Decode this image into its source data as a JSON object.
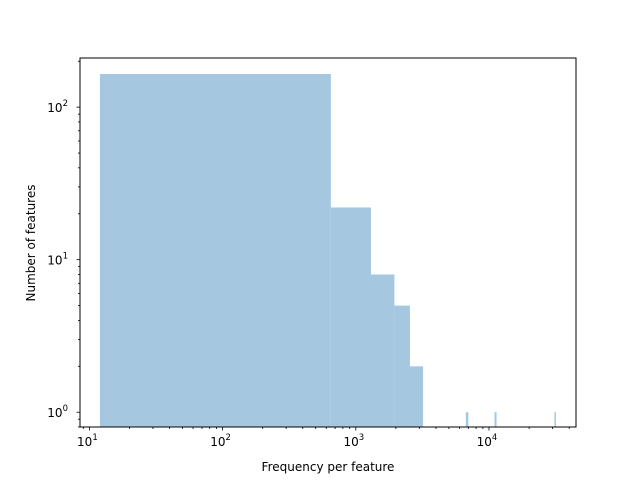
{
  "chart_data": {
    "type": "bar",
    "chart_kind": "histogram",
    "xlabel": "Frequency per feature",
    "ylabel": "Number of features",
    "xscale": "log",
    "yscale": "log",
    "xlim": [
      8.5,
      45000
    ],
    "ylim": [
      0.8,
      210
    ],
    "grid": false,
    "bar_color": "#a5c8e0",
    "bins": [
      {
        "x0": 12,
        "x1": 650,
        "count": 165
      },
      {
        "x0": 650,
        "x1": 1300,
        "count": 22
      },
      {
        "x0": 1300,
        "x1": 1950,
        "count": 8
      },
      {
        "x0": 1950,
        "x1": 2550,
        "count": 5
      },
      {
        "x0": 2550,
        "x1": 3200,
        "count": 2
      },
      {
        "x0": 6700,
        "x1": 7000,
        "count": 1
      },
      {
        "x0": 11000,
        "x1": 11400,
        "count": 1
      },
      {
        "x0": 31000,
        "x1": 31300,
        "count": 1
      }
    ],
    "x_ticks": [
      {
        "value": 10,
        "base": "10",
        "exp": "1"
      },
      {
        "value": 100,
        "base": "10",
        "exp": "2"
      },
      {
        "value": 1000,
        "base": "10",
        "exp": "3"
      },
      {
        "value": 10000,
        "base": "10",
        "exp": "4"
      }
    ],
    "y_ticks": [
      {
        "value": 1,
        "base": "10",
        "exp": "0"
      },
      {
        "value": 10,
        "base": "10",
        "exp": "1"
      },
      {
        "value": 100,
        "base": "10",
        "exp": "2"
      }
    ]
  }
}
